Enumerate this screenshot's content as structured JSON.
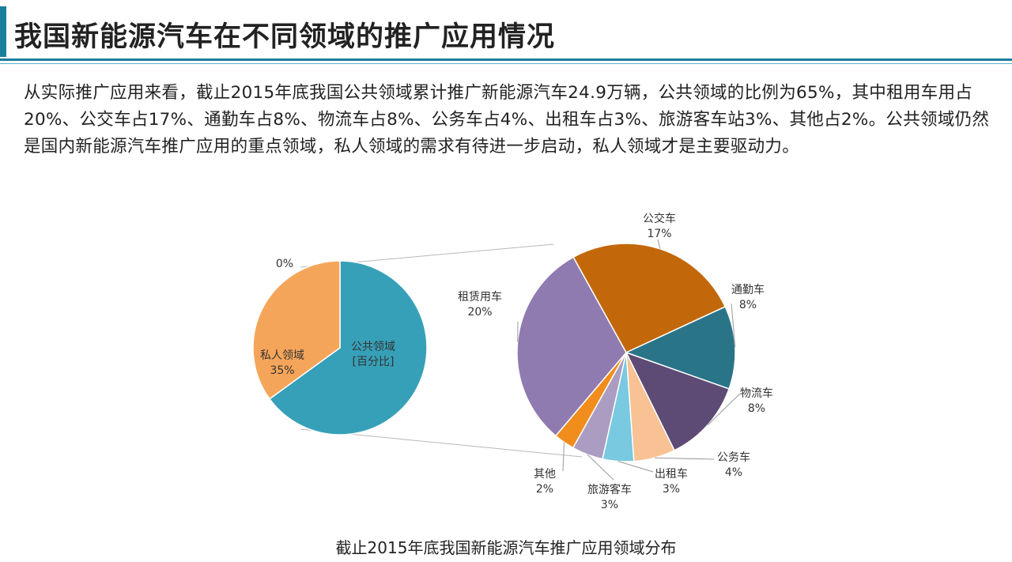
{
  "header": {
    "title": "我国新能源汽车在不同领域的推广应用情况",
    "accent_color": "#1a7f9c"
  },
  "body": {
    "paragraph": "从实际推广应用来看，截止2015年底我国公共领域累计推广新能源汽车24.9万辆，公共领域的比例为65%，其中租用车用占20%、公交车占17%、通勤车占8%、物流车占8%、公务车占4%、出租车占3%、旅游客车站3%、其他占2%。公共领域仍然是国内新能源汽车推广应用的重点领域，私人领域的需求有待进一步启动，私人领域才是主要驱动力。"
  },
  "caption": "截止2015年底我国新能源汽车推广应用领域分布",
  "chart_data": [
    {
      "type": "pie",
      "slices": [
        {
          "label": "0%",
          "value": 0,
          "color": "#1f5f86"
        },
        {
          "label": "公共领域",
          "sublabel": "[百分比]",
          "value": 65,
          "color": "#36a0b8"
        },
        {
          "label": "私人领域",
          "sublabel": "35%",
          "value": 35,
          "color": "#f5a55a"
        }
      ]
    },
    {
      "type": "pie",
      "slices": [
        {
          "label": "公交车",
          "sublabel": "17%",
          "value": 17,
          "color": "#c2680a"
        },
        {
          "label": "通勤车",
          "sublabel": "8%",
          "value": 8,
          "color": "#2a7488"
        },
        {
          "label": "物流车",
          "sublabel": "8%",
          "value": 8,
          "color": "#5d4b75"
        },
        {
          "label": "公务车",
          "sublabel": "4%",
          "value": 4,
          "color": "#f8c294"
        },
        {
          "label": "出租车",
          "sublabel": "3%",
          "value": 3,
          "color": "#79c9e0"
        },
        {
          "label": "旅游客车",
          "sublabel": "3%",
          "value": 3,
          "color": "#ab9cc1"
        },
        {
          "label": "其他",
          "sublabel": "2%",
          "value": 2,
          "color": "#f18d1c"
        },
        {
          "label": "租赁用车",
          "sublabel": "20%",
          "value": 20,
          "color": "#907bb0"
        }
      ]
    }
  ]
}
